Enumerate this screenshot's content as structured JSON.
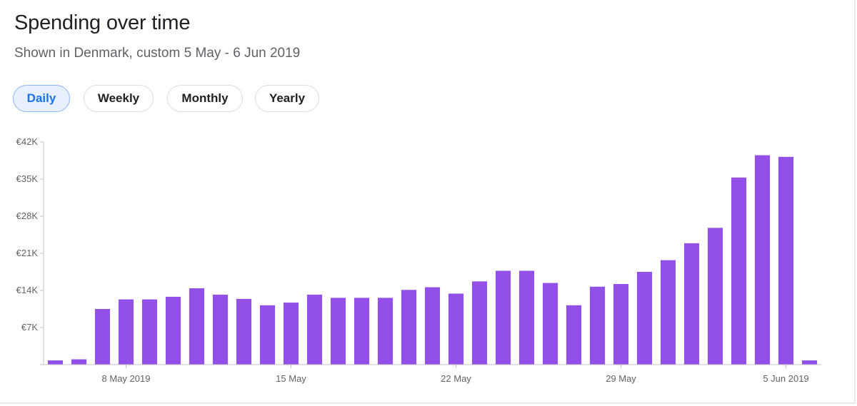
{
  "header": {
    "title": "Spending over time",
    "subtitle": "Shown in Denmark, custom 5 May - 6 Jun 2019"
  },
  "tabs": [
    {
      "label": "Daily",
      "active": true
    },
    {
      "label": "Weekly",
      "active": false
    },
    {
      "label": "Monthly",
      "active": false
    },
    {
      "label": "Yearly",
      "active": false
    }
  ],
  "colors": {
    "bar": "#9250e8",
    "axis": "#bdc1c6",
    "active_tab": "#1a73e8"
  },
  "chart_data": {
    "type": "bar",
    "title": "",
    "xlabel": "",
    "ylabel": "",
    "ylim": [
      0,
      42000
    ],
    "grid": false,
    "y_ticks": [
      {
        "value": 0,
        "label": ""
      },
      {
        "value": 7000,
        "label": "€7K"
      },
      {
        "value": 14000,
        "label": "€14K"
      },
      {
        "value": 21000,
        "label": "€21K"
      },
      {
        "value": 28000,
        "label": "€28K"
      },
      {
        "value": 35000,
        "label": "€35K"
      },
      {
        "value": 42000,
        "label": "€42K"
      }
    ],
    "x_ticks": [
      {
        "category": "8 May 2019",
        "label": "8 May 2019"
      },
      {
        "category": "15 May 2019",
        "label": "15 May"
      },
      {
        "category": "22 May 2019",
        "label": "22 May"
      },
      {
        "category": "29 May 2019",
        "label": "29 May"
      },
      {
        "category": "5 Jun 2019",
        "label": "5 Jun 2019"
      }
    ],
    "categories": [
      "5 May 2019",
      "6 May 2019",
      "7 May 2019",
      "8 May 2019",
      "9 May 2019",
      "10 May 2019",
      "11 May 2019",
      "12 May 2019",
      "13 May 2019",
      "14 May 2019",
      "15 May 2019",
      "16 May 2019",
      "17 May 2019",
      "18 May 2019",
      "19 May 2019",
      "20 May 2019",
      "21 May 2019",
      "22 May 2019",
      "23 May 2019",
      "24 May 2019",
      "25 May 2019",
      "26 May 2019",
      "27 May 2019",
      "28 May 2019",
      "29 May 2019",
      "30 May 2019",
      "31 May 2019",
      "1 Jun 2019",
      "2 Jun 2019",
      "3 Jun 2019",
      "4 Jun 2019",
      "5 Jun 2019",
      "6 Jun 2019"
    ],
    "values": [
      800,
      1000,
      10500,
      12300,
      12300,
      12800,
      14400,
      13200,
      12400,
      11200,
      11700,
      13200,
      12600,
      12600,
      12600,
      14100,
      14600,
      13400,
      15700,
      17700,
      17700,
      15400,
      11200,
      14700,
      15200,
      17500,
      19700,
      22900,
      25800,
      35300,
      39500,
      39200,
      800
    ]
  }
}
